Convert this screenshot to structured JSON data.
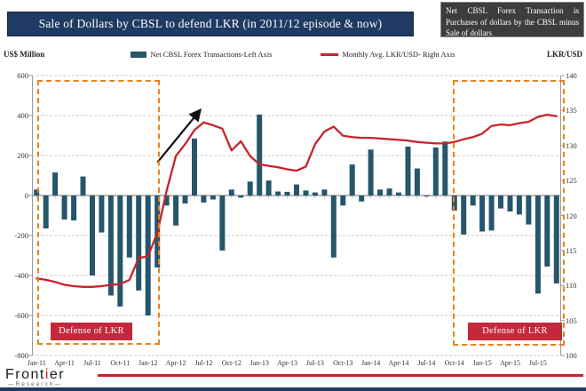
{
  "header": {
    "title": "Sale of Dollars by CBSL to defend LKR (in 2011/12 episode & now)",
    "note": "Net CBSL Forex Transaction is Purchases of dollars by the CBSL minus Sale of dollars"
  },
  "legend": {
    "bars_label": "Net CBSL Forex Transactions-Left Axis",
    "line_label": "Monthly Avg. LKR/USD- Right Axis"
  },
  "axes": {
    "left_unit": "US$ Million",
    "right_unit": "LKR/USD"
  },
  "annotations": {
    "defense_label_1": "Defense of LKR",
    "defense_label_2": "Defense of LKR"
  },
  "footer": {
    "brand_prefix": "Front",
    "brand_accent": "i",
    "brand_suffix": "er",
    "brand_sub": "—Research—"
  },
  "colors": {
    "bar": "#25566b",
    "line": "#c9222b",
    "navy": "#1f3a63",
    "orange": "#e8821c",
    "defense_bg": "#c4293b",
    "note_bg": "#3d3d3d"
  },
  "chart_data": {
    "type": "bar",
    "combo": [
      "bar",
      "line"
    ],
    "title": "Sale of Dollars by CBSL to defend LKR (in 2011/12 episode & now)",
    "xlabel": "",
    "ylabel_left": "US$ Million",
    "ylabel_right": "LKR/USD",
    "grid": true,
    "legend_position": "top",
    "tick_every": 3,
    "left_axis": {
      "min": -800,
      "max": 600,
      "step": 200
    },
    "right_axis": {
      "min": 100,
      "max": 140,
      "step": 5
    },
    "x": [
      "Jan-11",
      "Feb-11",
      "Mar-11",
      "Apr-11",
      "May-11",
      "Jun-11",
      "Jul-11",
      "Aug-11",
      "Sep-11",
      "Oct-11",
      "Nov-11",
      "Dec-11",
      "Jan-12",
      "Feb-12",
      "Mar-12",
      "Apr-12",
      "May-12",
      "Jun-12",
      "Jul-12",
      "Aug-12",
      "Sep-12",
      "Oct-12",
      "Nov-12",
      "Dec-12",
      "Jan-13",
      "Feb-13",
      "Mar-13",
      "Apr-13",
      "May-13",
      "Jun-13",
      "Jul-13",
      "Aug-13",
      "Sep-13",
      "Oct-13",
      "Nov-13",
      "Dec-13",
      "Jan-14",
      "Feb-14",
      "Mar-14",
      "Apr-14",
      "May-14",
      "Jun-14",
      "Jul-14",
      "Aug-14",
      "Sep-14",
      "Oct-14",
      "Nov-14",
      "Dec-14",
      "Jan-15",
      "Feb-15",
      "Mar-15",
      "Apr-15",
      "May-15",
      "Jun-15",
      "Jul-15",
      "Aug-15",
      "Sep-15"
    ],
    "series": [
      {
        "name": "Net CBSL Forex Transactions-Left Axis",
        "type": "bar",
        "axis": "left",
        "values": [
          30,
          -165,
          115,
          -120,
          -125,
          95,
          -400,
          -185,
          -500,
          -555,
          -310,
          -475,
          -600,
          -360,
          -50,
          -150,
          -40,
          285,
          -35,
          -20,
          -275,
          30,
          -10,
          70,
          405,
          75,
          20,
          18,
          55,
          25,
          15,
          30,
          -310,
          -50,
          155,
          -30,
          230,
          30,
          35,
          15,
          245,
          135,
          -5,
          240,
          270,
          -75,
          -195,
          -50,
          -180,
          -175,
          -65,
          -80,
          -95,
          -145,
          -490,
          -355,
          -440
        ]
      },
      {
        "name": "Monthly Avg. LKR/USD- Right Axis",
        "type": "line",
        "axis": "right",
        "values": [
          111.0,
          110.8,
          110.5,
          110.1,
          109.9,
          109.8,
          109.8,
          109.9,
          110.1,
          110.2,
          110.8,
          113.9,
          114.2,
          117.5,
          123.5,
          128.5,
          130.2,
          132.2,
          133.3,
          132.9,
          132.4,
          129.3,
          130.6,
          128.5,
          127.3,
          127.1,
          126.9,
          126.6,
          126.4,
          127.0,
          130.2,
          132.0,
          132.7,
          131.4,
          131.2,
          131.1,
          131.1,
          131.0,
          130.9,
          130.8,
          130.7,
          130.5,
          130.4,
          130.3,
          130.3,
          130.5,
          130.9,
          131.2,
          131.7,
          132.8,
          133.0,
          132.9,
          133.2,
          133.4,
          134.1,
          134.4,
          134.2
        ]
      }
    ],
    "highlight_boxes": [
      {
        "x0": 0.01,
        "x1": 0.242,
        "y0": 0.016,
        "y1": 0.962
      },
      {
        "x0": 0.795,
        "x1": 1.007,
        "y0": 0.016,
        "y1": 0.965
      }
    ],
    "defense_labels": [
      {
        "x": 0.0352,
        "w": 0.1544,
        "y": 0.8825,
        "h": 0.0635
      },
      {
        "x": 0.8238,
        "w": 0.1779,
        "y": 0.8825,
        "h": 0.0635
      }
    ],
    "arrow": {
      "x1": 0.237,
      "y1": 0.31,
      "x2": 0.316,
      "y2": 0.128
    }
  }
}
